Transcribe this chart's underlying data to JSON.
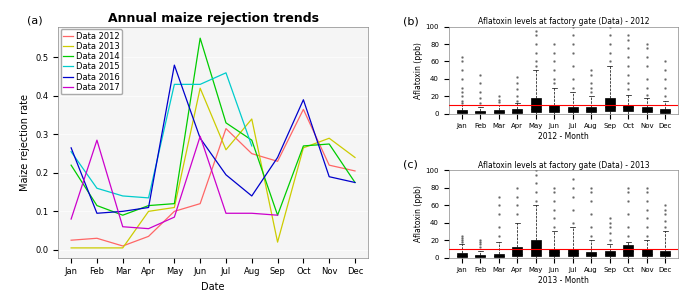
{
  "title_a": "Annual maize rejection trends",
  "xlabel_a": "Date",
  "ylabel_a": "Maize rejection rate",
  "months": [
    "Jan",
    "Feb",
    "Mar",
    "Apr",
    "May",
    "Jun",
    "Jul",
    "Aug",
    "Sep",
    "Oct",
    "Nov",
    "Dec"
  ],
  "series_order": [
    "Data 2012",
    "Data 2013",
    "Data 2014",
    "Data 2015",
    "Data 2016",
    "Data 2017"
  ],
  "series": {
    "Data 2012": {
      "color": "#FF6666",
      "values": [
        0.025,
        0.03,
        0.01,
        0.035,
        0.1,
        0.12,
        0.315,
        0.25,
        0.23,
        0.365,
        0.22,
        0.205
      ]
    },
    "Data 2013": {
      "color": "#CCCC00",
      "values": [
        0.005,
        0.005,
        0.005,
        0.1,
        0.11,
        0.42,
        0.26,
        0.34,
        0.02,
        0.265,
        0.29,
        0.24
      ]
    },
    "Data 2014": {
      "color": "#00CC00",
      "values": [
        0.22,
        0.115,
        0.09,
        0.115,
        0.12,
        0.55,
        0.33,
        0.285,
        0.09,
        0.27,
        0.275,
        0.175
      ]
    },
    "Data 2015": {
      "color": "#00CCCC",
      "values": [
        0.255,
        0.16,
        0.14,
        0.135,
        0.43,
        0.43,
        0.46,
        0.27,
        null,
        null,
        null,
        null
      ]
    },
    "Data 2016": {
      "color": "#0000CC",
      "values": [
        0.265,
        0.095,
        0.1,
        0.11,
        0.48,
        0.29,
        0.195,
        0.14,
        0.24,
        0.39,
        0.19,
        0.175
      ]
    },
    "Data 2017": {
      "color": "#CC00CC",
      "values": [
        0.08,
        0.285,
        0.06,
        0.055,
        0.085,
        0.295,
        0.095,
        0.095,
        0.09,
        null,
        null,
        null
      ]
    }
  },
  "ylim_a": [
    -0.02,
    0.58
  ],
  "yticks_a": [
    0.0,
    0.1,
    0.2,
    0.3,
    0.4,
    0.5
  ],
  "title_b": "Aflatoxin levels at factory gate (Data) - 2012",
  "title_c": "Aflatoxin levels at factory gate (Data) - 2013",
  "ylabel_bc": "Aflatoxin (ppb)",
  "xlabel_b": "2012 - Month",
  "xlabel_c": "2013 - Month",
  "red_line": 10,
  "ylim_bc": [
    0,
    100
  ],
  "yticks_bc": [
    0,
    20,
    40,
    60,
    80,
    100
  ],
  "box_stats_2012": [
    {
      "med": 2,
      "q1": 1,
      "q3": 4,
      "whislo": 0,
      "whishi": 10,
      "fliers": [
        12,
        15,
        20,
        25,
        30,
        40,
        50,
        60,
        65
      ]
    },
    {
      "med": 2,
      "q1": 1,
      "q3": 3,
      "whislo": 0,
      "whishi": 8,
      "fliers": [
        12,
        18,
        25,
        35,
        45
      ]
    },
    {
      "med": 2,
      "q1": 1,
      "q3": 4,
      "whislo": 0,
      "whishi": 10,
      "fliers": [
        13,
        16,
        20
      ]
    },
    {
      "med": 2,
      "q1": 1,
      "q3": 5,
      "whislo": 0,
      "whishi": 12,
      "fliers": [
        15,
        20,
        28,
        35,
        42
      ]
    },
    {
      "med": 5,
      "q1": 2,
      "q3": 18,
      "whislo": 0,
      "whishi": 50,
      "fliers": [
        55,
        60,
        70,
        80,
        90,
        95
      ]
    },
    {
      "med": 4,
      "q1": 2,
      "q3": 10,
      "whislo": 0,
      "whishi": 30,
      "fliers": [
        35,
        40,
        50,
        60,
        70,
        80
      ]
    },
    {
      "med": 4,
      "q1": 2,
      "q3": 8,
      "whislo": 0,
      "whishi": 25,
      "fliers": [
        30,
        40,
        55,
        70,
        80,
        90,
        100
      ]
    },
    {
      "med": 4,
      "q1": 2,
      "q3": 8,
      "whislo": 0,
      "whishi": 20,
      "fliers": [
        25,
        30,
        35,
        45,
        50
      ]
    },
    {
      "med": 8,
      "q1": 3,
      "q3": 18,
      "whislo": 0,
      "whishi": 55,
      "fliers": [
        60,
        70,
        80,
        90,
        100
      ]
    },
    {
      "med": 8,
      "q1": 3,
      "q3": 10,
      "whislo": 0,
      "whishi": 22,
      "fliers": [
        28,
        35,
        45,
        55,
        65,
        75,
        85,
        90
      ]
    },
    {
      "med": 4,
      "q1": 2,
      "q3": 8,
      "whislo": 0,
      "whishi": 18,
      "fliers": [
        22,
        30,
        40,
        55,
        65,
        75,
        80
      ]
    },
    {
      "med": 3,
      "q1": 1,
      "q3": 6,
      "whislo": 0,
      "whishi": 15,
      "fliers": [
        20,
        30,
        40,
        50,
        60
      ]
    }
  ],
  "box_stats_2013": [
    {
      "med": 2,
      "q1": 1,
      "q3": 5,
      "whislo": 0,
      "whishi": 15,
      "fliers": [
        18,
        20,
        22,
        25
      ]
    },
    {
      "med": 2,
      "q1": 1,
      "q3": 3,
      "whislo": 0,
      "whishi": 8,
      "fliers": [
        12,
        15,
        18,
        20
      ]
    },
    {
      "med": 2,
      "q1": 1,
      "q3": 4,
      "whislo": 0,
      "whishi": 18,
      "fliers": [
        25,
        35,
        50,
        60,
        70
      ]
    },
    {
      "med": 4,
      "q1": 2,
      "q3": 12,
      "whislo": 0,
      "whishi": 40,
      "fliers": [
        50,
        60,
        70,
        80
      ]
    },
    {
      "med": 10,
      "q1": 2,
      "q3": 20,
      "whislo": 0,
      "whishi": 60,
      "fliers": [
        65,
        75,
        85,
        95,
        100
      ]
    },
    {
      "med": 6,
      "q1": 2,
      "q3": 10,
      "whislo": 0,
      "whishi": 30,
      "fliers": [
        35,
        45,
        55,
        65,
        75,
        80
      ]
    },
    {
      "med": 5,
      "q1": 2,
      "q3": 10,
      "whislo": 0,
      "whishi": 35,
      "fliers": [
        40,
        55,
        70,
        80,
        90
      ]
    },
    {
      "med": 4,
      "q1": 2,
      "q3": 6,
      "whislo": 0,
      "whishi": 20,
      "fliers": [
        25,
        35,
        50,
        65,
        75,
        80
      ]
    },
    {
      "med": 4,
      "q1": 2,
      "q3": 8,
      "whislo": 0,
      "whishi": 15,
      "fliers": [
        20,
        28,
        35,
        40,
        45
      ]
    },
    {
      "med": 8,
      "q1": 2,
      "q3": 14,
      "whislo": 0,
      "whishi": 18,
      "fliers": [
        25,
        35,
        50,
        65,
        75,
        80
      ]
    },
    {
      "med": 4,
      "q1": 2,
      "q3": 10,
      "whislo": 0,
      "whishi": 20,
      "fliers": [
        25,
        35,
        45,
        55,
        65,
        75,
        80
      ]
    },
    {
      "med": 4,
      "q1": 2,
      "q3": 8,
      "whislo": 0,
      "whishi": 30,
      "fliers": [
        35,
        42,
        50,
        55,
        60
      ]
    }
  ],
  "bg_color": "#f5f5f5",
  "title_fontsize_a": 9,
  "title_fontsize_bc": 5.5,
  "axis_label_fontsize_a": 7,
  "axis_label_fontsize_bc": 5.5,
  "tick_fontsize_a": 6,
  "tick_fontsize_bc": 5,
  "legend_fontsize": 6,
  "panel_label_fontsize": 8
}
